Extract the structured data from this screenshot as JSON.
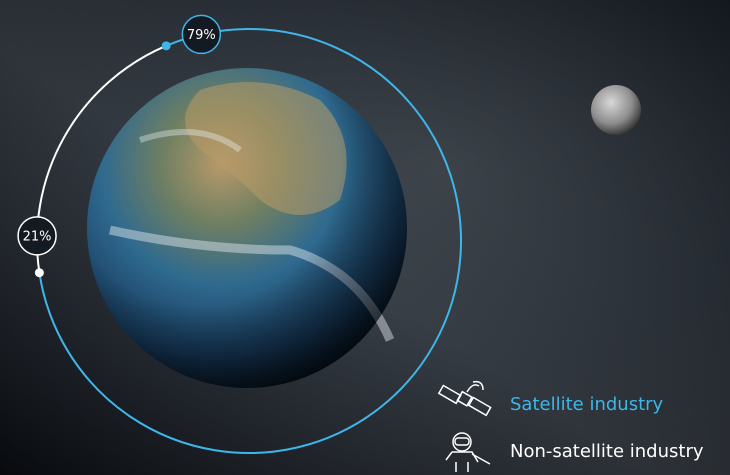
{
  "chart_data": {
    "type": "donut",
    "categories": [
      "Satellite industry",
      "Non-satellite industry"
    ],
    "values": [
      79,
      21
    ],
    "value_labels": [
      "79%",
      "21%"
    ],
    "colors": [
      "#3fb6ea",
      "#ffffff"
    ]
  }
}
